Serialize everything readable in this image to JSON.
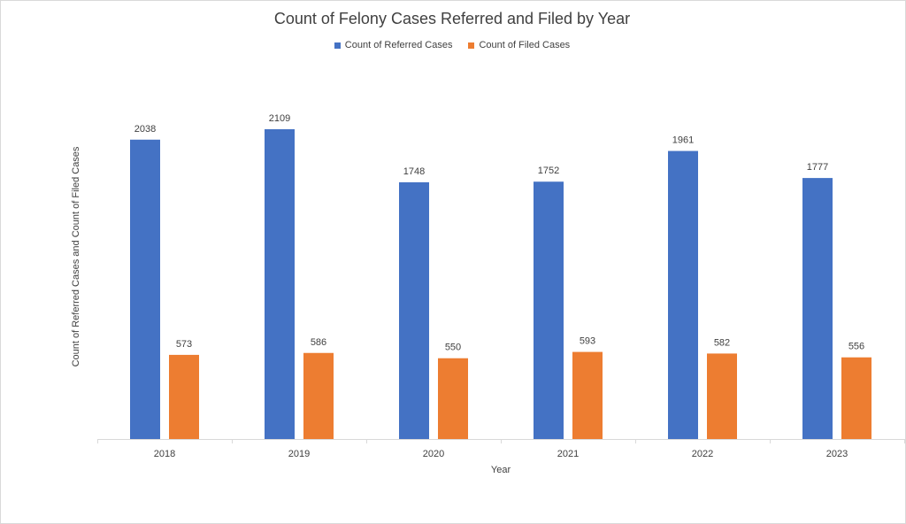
{
  "chart_data": {
    "type": "bar",
    "title": "Count of Felony Cases Referred and Filed by Year",
    "xlabel": "Year",
    "ylabel": "Count of Referred Cases and Count of Filed Cases",
    "categories": [
      "2018",
      "2019",
      "2020",
      "2021",
      "2022",
      "2023"
    ],
    "series": [
      {
        "name": "Count of Referred Cases",
        "color": "#4472c4",
        "values": [
          2038,
          2109,
          1748,
          1752,
          1961,
          1777
        ]
      },
      {
        "name": "Count of Filed Cases",
        "color": "#ed7d31",
        "values": [
          573,
          586,
          550,
          593,
          582,
          556
        ]
      }
    ],
    "ylim": [
      0,
      2109
    ],
    "grid": false,
    "legend_position": "top",
    "data_labels": true
  }
}
